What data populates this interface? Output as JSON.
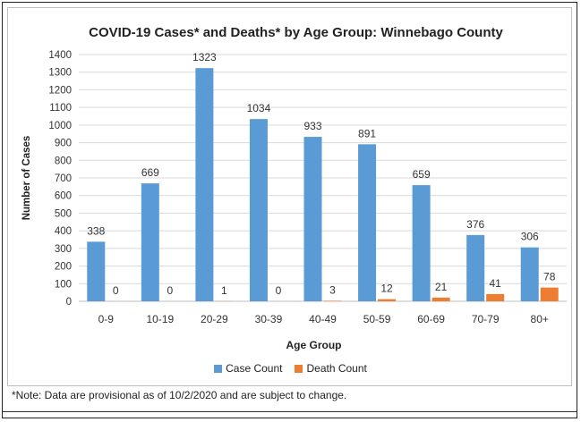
{
  "chart_data": {
    "type": "bar",
    "title": "COVID-19 Cases* and Deaths* by Age Group: Winnebago County",
    "xlabel": "Age Group",
    "ylabel": "Number of Cases",
    "ylim": [
      0,
      1400
    ],
    "yticks": [
      "0",
      "100",
      "200",
      "300",
      "400",
      "500",
      "600",
      "700",
      "800",
      "900",
      "1000",
      "1100",
      "1200",
      "1300",
      "1400"
    ],
    "categories": [
      "0-9",
      "10-19",
      "20-29",
      "30-39",
      "40-49",
      "50-59",
      "60-69",
      "70-79",
      "80+"
    ],
    "series": [
      {
        "name": "Case Count",
        "color": "#5b9bd5",
        "values": [
          338,
          669,
          1323,
          1034,
          933,
          891,
          659,
          376,
          306
        ]
      },
      {
        "name": "Death Count",
        "color": "#ed7d31",
        "values": [
          0,
          0,
          1,
          0,
          3,
          12,
          21,
          41,
          78
        ]
      }
    ],
    "grid": true,
    "legend_position": "bottom"
  },
  "note": "*Note: Data are provisional as of 10/2/2020 and are subject to change."
}
